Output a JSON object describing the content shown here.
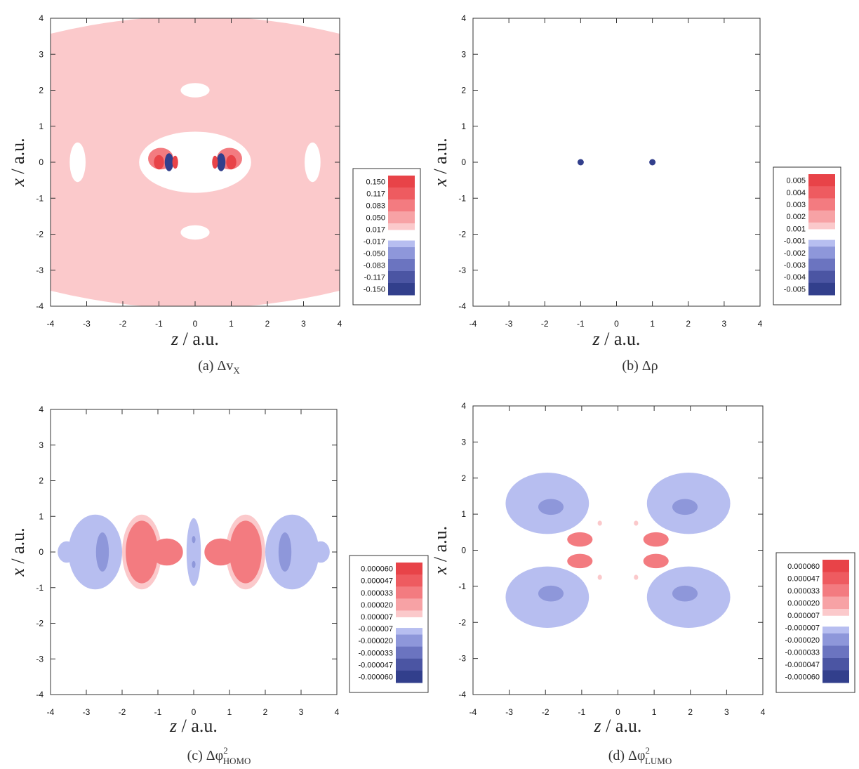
{
  "colors": {
    "pos": [
      "#fde5e6",
      "#fbc9cb",
      "#f7a2a5",
      "#f37b80",
      "#ee5b60",
      "#e84348"
    ],
    "neg": [
      "#dde1f6",
      "#b7bef0",
      "#8e97da",
      "#6b74c0",
      "#4b55a3",
      "#323f8c"
    ],
    "frame": "#333333",
    "background": "#ffffff"
  },
  "chart_data": [
    {
      "type": "heatmap",
      "caption": "(a) Δv_X",
      "caption_main": "(a)  Δv",
      "caption_sub": "X",
      "caption_sup": "",
      "xlabel_var": "z",
      "xlabel_unit": " / a.u.",
      "ylabel_var": "x",
      "ylabel_unit": " / a.u.",
      "xlim": [
        -4,
        4
      ],
      "ylim": [
        -4,
        4
      ],
      "x_ticks": [
        "-4",
        "-3",
        "-2",
        "-1",
        "0",
        "1",
        "2",
        "3",
        "4"
      ],
      "y_ticks": [
        "4",
        "3",
        "2",
        "1",
        "0",
        "-1",
        "-2",
        "-3",
        "-4"
      ],
      "legend_levels": [
        "0.150",
        "0.117",
        "0.083",
        "0.050",
        "0.017",
        "-0.017",
        "-0.050",
        "-0.083",
        "-0.117",
        "-0.150"
      ],
      "background_level": 0.03,
      "blobs": [
        {
          "x": -3.25,
          "y": 0,
          "rx": 0.22,
          "ry": 0.55,
          "v": 0
        },
        {
          "x": 3.25,
          "y": 0,
          "rx": 0.22,
          "ry": 0.55,
          "v": 0
        },
        {
          "x": 0,
          "y": 2.0,
          "rx": 0.4,
          "ry": 0.2,
          "v": 0
        },
        {
          "x": 0,
          "y": -1.95,
          "rx": 0.4,
          "ry": 0.2,
          "v": 0
        },
        {
          "x": 0,
          "y": 0,
          "rx": 1.55,
          "ry": 0.85,
          "v": 0
        },
        {
          "x": -0.95,
          "y": 0.1,
          "rx": 0.35,
          "ry": 0.3,
          "v": 0.09
        },
        {
          "x": 0.95,
          "y": 0.1,
          "rx": 0.35,
          "ry": 0.3,
          "v": 0.09
        },
        {
          "x": -0.72,
          "y": 0,
          "rx": 0.12,
          "ry": 0.25,
          "v": -0.15
        },
        {
          "x": 0.72,
          "y": 0,
          "rx": 0.12,
          "ry": 0.25,
          "v": -0.15
        },
        {
          "x": -1.0,
          "y": 0,
          "rx": 0.14,
          "ry": 0.2,
          "v": 0.15
        },
        {
          "x": 1.0,
          "y": 0,
          "rx": 0.14,
          "ry": 0.2,
          "v": 0.15
        },
        {
          "x": -0.55,
          "y": 0,
          "rx": 0.08,
          "ry": 0.18,
          "v": 0.15
        },
        {
          "x": 0.55,
          "y": 0,
          "rx": 0.08,
          "ry": 0.18,
          "v": 0.15
        }
      ],
      "points": []
    },
    {
      "type": "heatmap",
      "caption": "(b) Δρ",
      "caption_main": "(b)  Δρ",
      "caption_sub": "",
      "caption_sup": "",
      "xlabel_var": "z",
      "xlabel_unit": " / a.u.",
      "ylabel_var": "x",
      "ylabel_unit": " / a.u.",
      "xlim": [
        -4,
        4
      ],
      "ylim": [
        -4,
        4
      ],
      "x_ticks": [
        "-4",
        "-3",
        "-2",
        "-1",
        "0",
        "1",
        "2",
        "3",
        "4"
      ],
      "y_ticks": [
        "4",
        "3",
        "2",
        "1",
        "0",
        "-1",
        "-2",
        "-3",
        "-4"
      ],
      "legend_levels": [
        "0.005",
        "0.004",
        "0.003",
        "0.002",
        "0.001",
        "-0.001",
        "-0.002",
        "-0.003",
        "-0.004",
        "-0.005"
      ],
      "background_level": 0,
      "blobs": [],
      "points": [
        {
          "x": -1.0,
          "y": 0.0,
          "v": -0.005
        },
        {
          "x": 1.0,
          "y": 0.0,
          "v": -0.005
        }
      ]
    },
    {
      "type": "heatmap",
      "caption": "(c) Δφ²_HOMO",
      "caption_main": "(c)  Δφ",
      "caption_sub": "HOMO",
      "caption_sup": "2",
      "xlabel_var": "z",
      "xlabel_unit": " / a.u.",
      "ylabel_var": "x",
      "ylabel_unit": " / a.u.",
      "xlim": [
        -4,
        4
      ],
      "ylim": [
        -4,
        4
      ],
      "x_ticks": [
        "-4",
        "-3",
        "-2",
        "-1",
        "0",
        "1",
        "2",
        "3",
        "4"
      ],
      "y_ticks": [
        "4",
        "3",
        "2",
        "1",
        "0",
        "-1",
        "-2",
        "-3",
        "-4"
      ],
      "legend_levels": [
        "0.000060",
        "0.000047",
        "0.000033",
        "0.000020",
        "0.000007",
        "-0.000007",
        "-0.000020",
        "-0.000033",
        "-0.000047",
        "-0.000060"
      ],
      "background_level": 0,
      "blobs": [
        {
          "x": -2.75,
          "y": 0,
          "rx": 0.75,
          "ry": 1.05,
          "v": -1e-05
        },
        {
          "x": 2.75,
          "y": 0,
          "rx": 0.75,
          "ry": 1.05,
          "v": -1e-05
        },
        {
          "x": -3.55,
          "y": 0,
          "rx": 0.25,
          "ry": 0.3,
          "v": -1e-05
        },
        {
          "x": 3.55,
          "y": 0,
          "rx": 0.25,
          "ry": 0.3,
          "v": -1e-05
        },
        {
          "x": -2.55,
          "y": 0,
          "rx": 0.18,
          "ry": 0.55,
          "v": -2.5e-05
        },
        {
          "x": 2.55,
          "y": 0,
          "rx": 0.18,
          "ry": 0.55,
          "v": -2.5e-05
        },
        {
          "x": 0,
          "y": 0,
          "rx": 0.2,
          "ry": 0.95,
          "v": -1e-05
        },
        {
          "x": 0,
          "y": 0.35,
          "rx": 0.05,
          "ry": 0.1,
          "v": -2.5e-05
        },
        {
          "x": 0,
          "y": -0.35,
          "rx": 0.05,
          "ry": 0.1,
          "v": -2.5e-05
        },
        {
          "x": -1.45,
          "y": 0,
          "rx": 0.55,
          "ry": 1.05,
          "v": 1.2e-05
        },
        {
          "x": 1.45,
          "y": 0,
          "rx": 0.55,
          "ry": 1.05,
          "v": 1.2e-05
        },
        {
          "x": -1.45,
          "y": 0,
          "rx": 0.45,
          "ry": 0.88,
          "v": 4e-05
        },
        {
          "x": 1.45,
          "y": 0,
          "rx": 0.45,
          "ry": 0.88,
          "v": 4e-05
        },
        {
          "x": -0.75,
          "y": 0,
          "rx": 0.45,
          "ry": 0.38,
          "v": 4e-05
        },
        {
          "x": 0.75,
          "y": 0,
          "rx": 0.45,
          "ry": 0.38,
          "v": 4e-05
        }
      ],
      "points": []
    },
    {
      "type": "heatmap",
      "caption": "(d) Δφ²_LUMO",
      "caption_main": "(d)  Δφ",
      "caption_sub": "LUMO",
      "caption_sup": "2",
      "xlabel_var": "z",
      "xlabel_unit": " / a.u.",
      "ylabel_var": "x",
      "ylabel_unit": " / a.u.",
      "xlim": [
        -4,
        4
      ],
      "ylim": [
        -4,
        4
      ],
      "x_ticks": [
        "-4",
        "-3",
        "-2",
        "-1",
        "0",
        "1",
        "2",
        "3",
        "4"
      ],
      "y_ticks": [
        "4",
        "3",
        "2",
        "1",
        "0",
        "-1",
        "-2",
        "-3",
        "-4"
      ],
      "legend_levels": [
        "0.000060",
        "0.000047",
        "0.000033",
        "0.000020",
        "0.000007",
        "-0.000007",
        "-0.000020",
        "-0.000033",
        "-0.000047",
        "-0.000060"
      ],
      "background_level": 0,
      "blobs": [
        {
          "x": -1.95,
          "y": 1.3,
          "rx": 1.15,
          "ry": 0.85,
          "v": -1e-05
        },
        {
          "x": 1.95,
          "y": 1.3,
          "rx": 1.15,
          "ry": 0.85,
          "v": -1e-05
        },
        {
          "x": -1.95,
          "y": -1.3,
          "rx": 1.15,
          "ry": 0.85,
          "v": -1e-05
        },
        {
          "x": 1.95,
          "y": -1.3,
          "rx": 1.15,
          "ry": 0.85,
          "v": -1e-05
        },
        {
          "x": -1.85,
          "y": 1.2,
          "rx": 0.35,
          "ry": 0.22,
          "v": -2.5e-05
        },
        {
          "x": 1.85,
          "y": 1.2,
          "rx": 0.35,
          "ry": 0.22,
          "v": -2.5e-05
        },
        {
          "x": -1.85,
          "y": -1.2,
          "rx": 0.35,
          "ry": 0.22,
          "v": -2.5e-05
        },
        {
          "x": 1.85,
          "y": -1.2,
          "rx": 0.35,
          "ry": 0.22,
          "v": -2.5e-05
        },
        {
          "x": -1.05,
          "y": 0.3,
          "rx": 0.35,
          "ry": 0.2,
          "v": 4e-05
        },
        {
          "x": 1.05,
          "y": 0.3,
          "rx": 0.35,
          "ry": 0.2,
          "v": 4e-05
        },
        {
          "x": -1.05,
          "y": -0.3,
          "rx": 0.35,
          "ry": 0.2,
          "v": 4e-05
        },
        {
          "x": 1.05,
          "y": -0.3,
          "rx": 0.35,
          "ry": 0.2,
          "v": 4e-05
        },
        {
          "x": -0.5,
          "y": 0.75,
          "rx": 0.06,
          "ry": 0.07,
          "v": 1e-05
        },
        {
          "x": 0.5,
          "y": 0.75,
          "rx": 0.06,
          "ry": 0.07,
          "v": 1e-05
        },
        {
          "x": -0.5,
          "y": -0.75,
          "rx": 0.06,
          "ry": 0.07,
          "v": 1e-05
        },
        {
          "x": 0.5,
          "y": -0.75,
          "rx": 0.06,
          "ry": 0.07,
          "v": 1e-05
        }
      ],
      "points": []
    }
  ]
}
